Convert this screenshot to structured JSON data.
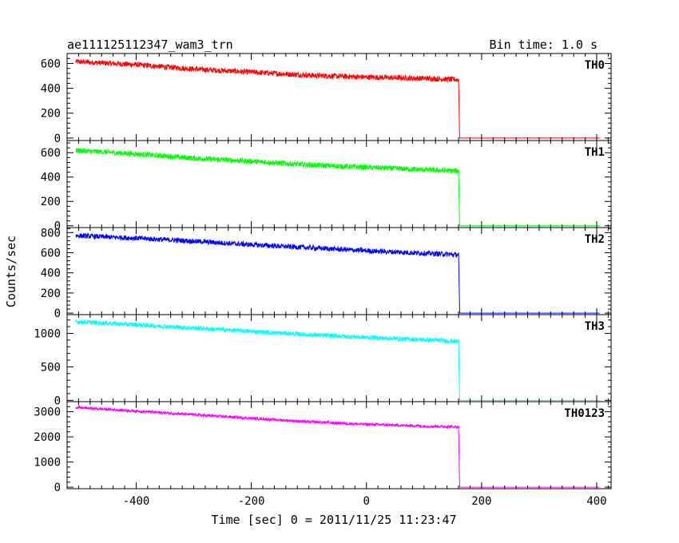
{
  "header": {
    "title": "ae111125112347_wam3_trn",
    "bin_time": "Bin time: 1.0 s"
  },
  "axes": {
    "xlabel": "Time [sec] 0 = 2011/11/25 11:23:47",
    "ylabel": "Counts/sec",
    "xlim": [
      -520,
      425
    ],
    "x_ticks": [
      -400,
      -200,
      0,
      200,
      400
    ]
  },
  "chart_data": {
    "type": "line",
    "xlabel": "Time [sec] 0 = 2011/11/25 11:23:47",
    "ylabel": "Counts/sec",
    "xlim": [
      -520,
      425
    ],
    "grid": false,
    "legend": "none",
    "drop_time": 162,
    "panels": [
      {
        "name": "TH0",
        "color": "#ff0000",
        "ylim": [
          -20,
          680
        ],
        "ticks": [
          0,
          200,
          400,
          600
        ],
        "x": [
          -505,
          -400,
          -300,
          -200,
          -100,
          0,
          100,
          160,
          162,
          200,
          300,
          405
        ],
        "y": [
          615,
          590,
          555,
          530,
          505,
          490,
          480,
          470,
          0,
          0,
          0,
          0
        ],
        "noise": 22
      },
      {
        "name": "TH1",
        "color": "#00ff00",
        "ylim": [
          -15,
          700
        ],
        "ticks": [
          0,
          200,
          400,
          600
        ],
        "x": [
          -505,
          -400,
          -300,
          -200,
          -100,
          0,
          100,
          160,
          162,
          200,
          300,
          405
        ],
        "y": [
          620,
          590,
          555,
          530,
          500,
          480,
          460,
          450,
          0,
          0,
          0,
          0
        ],
        "noise": 22
      },
      {
        "name": "TH2",
        "color": "#0000ff",
        "ylim": [
          -15,
          850
        ],
        "ticks": [
          0,
          200,
          400,
          600,
          800
        ],
        "x": [
          -505,
          -400,
          -300,
          -200,
          -100,
          0,
          100,
          160,
          162,
          200,
          300,
          405
        ],
        "y": [
          770,
          745,
          715,
          680,
          650,
          620,
          595,
          580,
          0,
          0,
          0,
          0
        ],
        "noise": 25
      },
      {
        "name": "TH3",
        "color": "#00ffff",
        "ylim": [
          -20,
          1280
        ],
        "ticks": [
          0,
          500,
          1000
        ],
        "x": [
          -505,
          -400,
          -300,
          -200,
          -100,
          0,
          100,
          160,
          162,
          200,
          300,
          405
        ],
        "y": [
          1175,
          1130,
          1080,
          1030,
          980,
          940,
          905,
          880,
          0,
          0,
          0,
          0
        ],
        "noise": 35
      },
      {
        "name": "TH0123",
        "color": "#ff00ff",
        "ylim": [
          -60,
          3400
        ],
        "ticks": [
          0,
          1000,
          2000,
          3000
        ],
        "x": [
          -505,
          -400,
          -300,
          -200,
          -100,
          0,
          100,
          160,
          162,
          200,
          300,
          405
        ],
        "y": [
          3170,
          3030,
          2880,
          2740,
          2600,
          2500,
          2430,
          2400,
          0,
          0,
          0,
          0
        ],
        "noise": 55
      }
    ]
  }
}
